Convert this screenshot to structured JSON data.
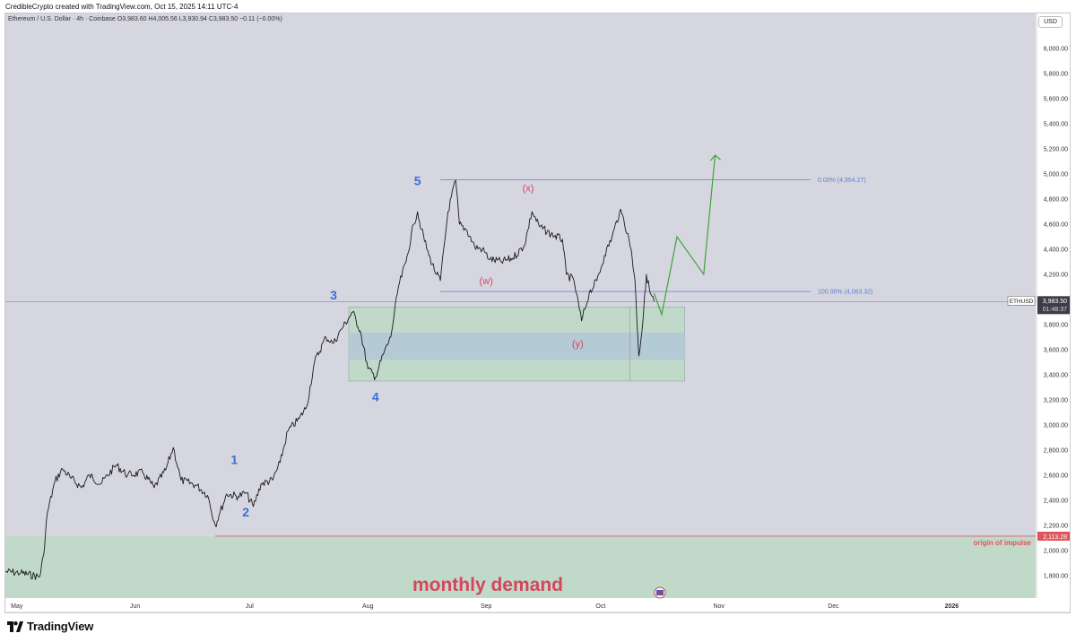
{
  "header": {
    "caption": "CredibleCrypto created with TradingView.com, Oct 15, 2025 14:11 UTC-4"
  },
  "legend": {
    "symbol": "Ethereum / U.S. Dollar · 4h · Coinbase",
    "open_label": "O",
    "open": "3,983.60",
    "high_label": "H",
    "high": "4,005.56",
    "low_label": "L",
    "low": "3,930.94",
    "close_label": "C",
    "close": "3,983.50",
    "change": "−0.11 (−0.00%)"
  },
  "currency_button": "USD",
  "brand": {
    "name": "TradingView"
  },
  "colors": {
    "plot_bg": "#d6d6e0",
    "candle": "#1a1a1a",
    "wave_label": "#3a6fd8",
    "corrective_label": "#d6455d",
    "fib_line": "#5b7fd6",
    "projection": "#3da33a",
    "demand_zone": "#bfd9c6",
    "inner_zone": "#b3c9d6",
    "origin_line": "#e0545c",
    "price_tag_bg": "#3d3d47"
  },
  "chart_data": {
    "type": "line",
    "symbol": "ETHUSD",
    "interval": "4h",
    "y_axis": {
      "ticks": [
        1800,
        2000,
        2200,
        2400,
        2600,
        2800,
        3000,
        3200,
        3400,
        3600,
        3800,
        4000,
        4200,
        4400,
        4600,
        4800,
        5000,
        5200,
        5400,
        5600,
        5800,
        6000
      ],
      "tick_labels": [
        "1,800.00",
        "2,000.00",
        "2,200.00",
        "2,400.00",
        "2,600.00",
        "2,800.00",
        "3,000.00",
        "3,200.00",
        "3,400.00",
        "3,600.00",
        "3,800.00",
        "4,000.00",
        "4,200.00",
        "4,400.00",
        "4,600.00",
        "4,800.00",
        "5,000.00",
        "5,200.00",
        "5,400.00",
        "5,600.00",
        "5,800.00",
        "6,000.00"
      ],
      "ylim": [
        1620,
        6280
      ]
    },
    "x_axis": {
      "dates": [
        "2025-05-01",
        "2025-06-01",
        "2025-07-01",
        "2025-08-01",
        "2025-09-01",
        "2025-10-01",
        "2025-11-01",
        "2025-12-01",
        "2026-01-01"
      ],
      "labels": [
        "May",
        "Jun",
        "Jul",
        "Aug",
        "Sep",
        "Oct",
        "Nov",
        "Dec",
        "2026"
      ],
      "xlim": [
        "2025-04-28",
        "2026-01-23"
      ]
    },
    "series": [
      {
        "color": "#1a1a1a",
        "points": [
          [
            "2025-04-28",
            1830
          ],
          [
            "2025-05-02",
            1820
          ],
          [
            "2025-05-07",
            1790
          ],
          [
            "2025-05-08",
            1960
          ],
          [
            "2025-05-09",
            2300
          ],
          [
            "2025-05-11",
            2550
          ],
          [
            "2025-05-13",
            2650
          ],
          [
            "2025-05-15",
            2580
          ],
          [
            "2025-05-18",
            2500
          ],
          [
            "2025-05-20",
            2600
          ],
          [
            "2025-05-23",
            2530
          ],
          [
            "2025-05-27",
            2680
          ],
          [
            "2025-05-30",
            2600
          ],
          [
            "2025-06-03",
            2620
          ],
          [
            "2025-06-06",
            2500
          ],
          [
            "2025-06-09",
            2640
          ],
          [
            "2025-06-11",
            2820
          ],
          [
            "2025-06-13",
            2560
          ],
          [
            "2025-06-17",
            2520
          ],
          [
            "2025-06-20",
            2440
          ],
          [
            "2025-06-22",
            2200
          ],
          [
            "2025-06-23",
            2280
          ],
          [
            "2025-06-25",
            2450
          ],
          [
            "2025-06-28",
            2430
          ],
          [
            "2025-06-30",
            2460
          ],
          [
            "2025-07-02",
            2350
          ],
          [
            "2025-07-04",
            2530
          ],
          [
            "2025-07-07",
            2560
          ],
          [
            "2025-07-09",
            2700
          ],
          [
            "2025-07-11",
            2950
          ],
          [
            "2025-07-14",
            3050
          ],
          [
            "2025-07-16",
            3150
          ],
          [
            "2025-07-18",
            3500
          ],
          [
            "2025-07-21",
            3700
          ],
          [
            "2025-07-23",
            3650
          ],
          [
            "2025-07-25",
            3760
          ],
          [
            "2025-07-28",
            3900
          ],
          [
            "2025-07-30",
            3750
          ],
          [
            "2025-08-01",
            3450
          ],
          [
            "2025-08-03",
            3380
          ],
          [
            "2025-08-05",
            3560
          ],
          [
            "2025-08-07",
            3700
          ],
          [
            "2025-08-09",
            4100
          ],
          [
            "2025-08-11",
            4300
          ],
          [
            "2025-08-13",
            4600
          ],
          [
            "2025-08-14",
            4700
          ],
          [
            "2025-08-15",
            4560
          ],
          [
            "2025-08-17",
            4350
          ],
          [
            "2025-08-19",
            4200
          ],
          [
            "2025-08-20",
            4150
          ],
          [
            "2025-08-22",
            4700
          ],
          [
            "2025-08-24",
            4950
          ],
          [
            "2025-08-25",
            4600
          ],
          [
            "2025-08-27",
            4550
          ],
          [
            "2025-08-29",
            4420
          ],
          [
            "2025-08-31",
            4400
          ],
          [
            "2025-09-02",
            4320
          ],
          [
            "2025-09-05",
            4300
          ],
          [
            "2025-09-08",
            4330
          ],
          [
            "2025-09-11",
            4430
          ],
          [
            "2025-09-13",
            4700
          ],
          [
            "2025-09-15",
            4580
          ],
          [
            "2025-09-18",
            4520
          ],
          [
            "2025-09-21",
            4480
          ],
          [
            "2025-09-22",
            4200
          ],
          [
            "2025-09-24",
            4150
          ],
          [
            "2025-09-26",
            3830
          ],
          [
            "2025-09-28",
            4050
          ],
          [
            "2025-09-30",
            4150
          ],
          [
            "2025-10-02",
            4350
          ],
          [
            "2025-10-04",
            4500
          ],
          [
            "2025-10-06",
            4700
          ],
          [
            "2025-10-07",
            4650
          ],
          [
            "2025-10-09",
            4400
          ],
          [
            "2025-10-10",
            4150
          ],
          [
            "2025-10-11",
            3550
          ],
          [
            "2025-10-12",
            3800
          ],
          [
            "2025-10-13",
            4200
          ],
          [
            "2025-10-14",
            4050
          ],
          [
            "2025-10-15",
            3983.5
          ]
        ]
      }
    ],
    "projection": {
      "color": "#3da33a",
      "points": [
        [
          "2025-10-15",
          4050
        ],
        [
          "2025-10-17",
          3880
        ],
        [
          "2025-10-21",
          4500
        ],
        [
          "2025-10-28",
          4200
        ],
        [
          "2025-10-31",
          5150
        ]
      ]
    },
    "zones": [
      {
        "name": "demand-zone",
        "x": [
          "2025-07-27",
          "2025-10-23"
        ],
        "y": [
          3350,
          3940
        ]
      },
      {
        "name": "inner-zone",
        "x": [
          "2025-07-27",
          "2025-10-23"
        ],
        "y": [
          3520,
          3735
        ]
      },
      {
        "name": "monthly-demand-zone",
        "x": [
          "2025-04-28",
          "2026-01-23"
        ],
        "y": [
          1620,
          2113.28
        ]
      }
    ],
    "levels": [
      {
        "name": "fib-0",
        "value": 4954.27,
        "label": "0.00% (4,954.27)",
        "x": [
          "2025-08-20",
          "2025-11-25"
        ]
      },
      {
        "name": "fib-100",
        "value": 4063.32,
        "label": "100.00% (4,063.32)",
        "x": [
          "2025-08-20",
          "2025-11-25"
        ]
      },
      {
        "name": "origin",
        "value": 2113.28,
        "label": "2,113.28",
        "x": [
          "2025-06-22",
          "2026-01-23"
        ]
      },
      {
        "name": "last-price",
        "value": 3983.5,
        "x": [
          "2025-04-28",
          "2026-01-23"
        ]
      }
    ],
    "waves": [
      {
        "label": "1",
        "date": "2025-06-27",
        "price": 2690
      },
      {
        "label": "2",
        "date": "2025-06-30",
        "price": 2270
      },
      {
        "label": "3",
        "date": "2025-07-23",
        "price": 4000
      },
      {
        "label": "4",
        "date": "2025-08-03",
        "price": 3190
      },
      {
        "label": "5",
        "date": "2025-08-14",
        "price": 4910
      }
    ],
    "corrective": [
      {
        "label": "(x)",
        "date": "2025-09-12",
        "price": 4860
      },
      {
        "label": "(w)",
        "date": "2025-09-01",
        "price": 4120
      },
      {
        "label": "(y)",
        "date": "2025-09-25",
        "price": 3620
      }
    ],
    "annotations": {
      "monthly_demand": "monthly demand",
      "origin_of_impulse": "origin of impulse"
    },
    "price_tag": {
      "symbol": "ETHUSD",
      "price": "3,983.50",
      "countdown": "01:48:37"
    },
    "grid": false
  }
}
